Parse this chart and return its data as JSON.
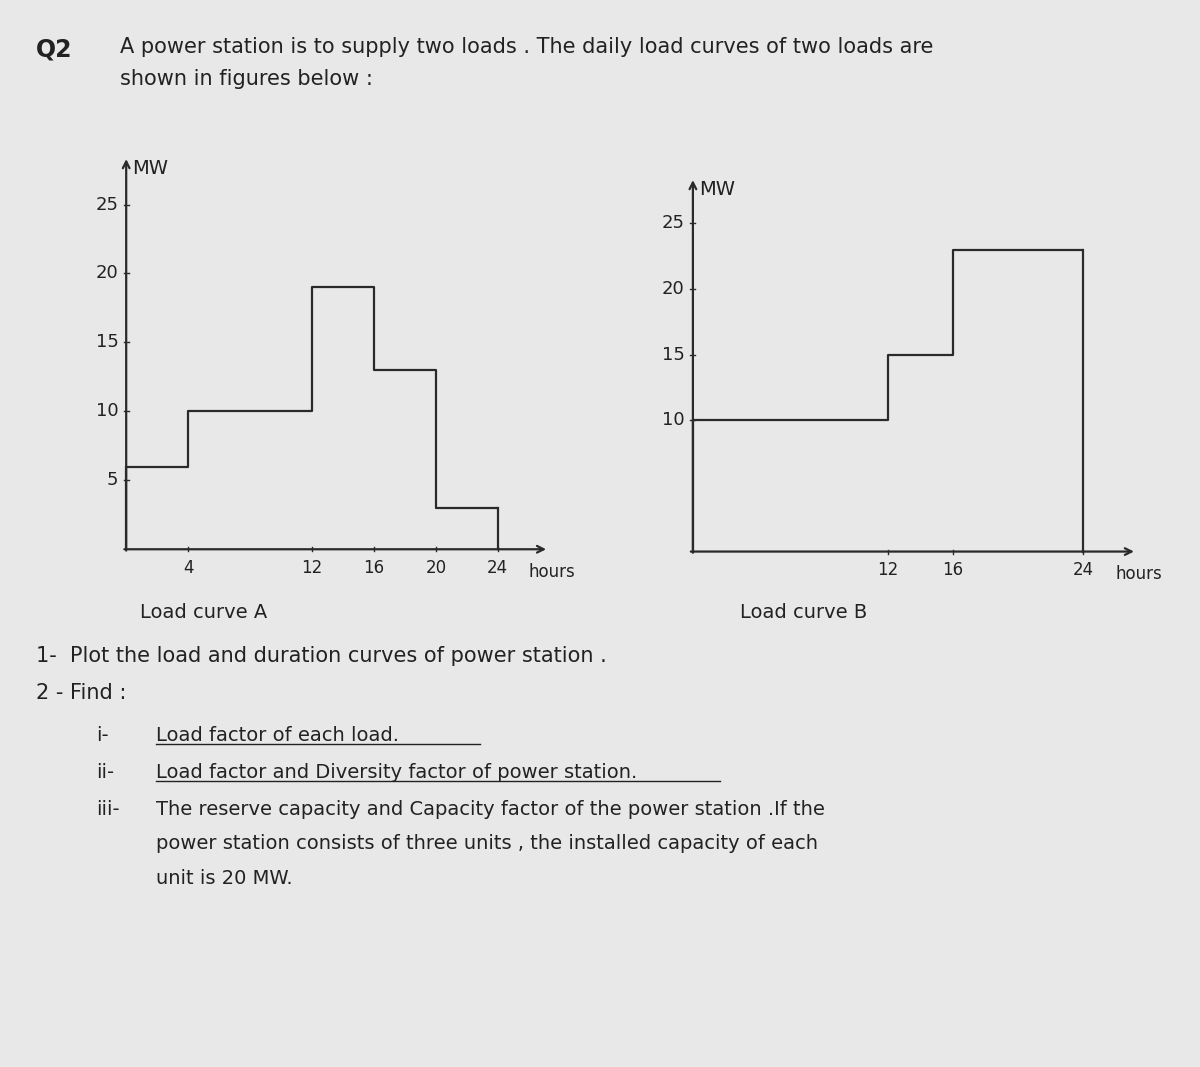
{
  "background_color": "#e8e8e8",
  "title_q2": "Q2",
  "title_line1": "A power station is to supply two loads . The daily load curves of two loads are",
  "title_line2": "shown in figures below :",
  "title_fontsize": 16,
  "chart_A": {
    "label": "Load curve A",
    "ylabel": "MW",
    "xlabel_ticks": [
      4,
      12,
      16,
      20,
      24
    ],
    "xlabel_label": "hours",
    "yticks": [
      5,
      10,
      15,
      20,
      25
    ],
    "ylim": [
      0,
      28
    ],
    "xlim": [
      0,
      27
    ],
    "steps_x": [
      0,
      4,
      4,
      12,
      12,
      16,
      16,
      20,
      20,
      24
    ],
    "steps_y": [
      6,
      6,
      10,
      10,
      19,
      19,
      13,
      13,
      3,
      3
    ]
  },
  "chart_B": {
    "label": "Load curve B",
    "ylabel": "MW",
    "xlabel_ticks": [
      12,
      16,
      24
    ],
    "xlabel_label": "hours",
    "yticks": [
      10,
      15,
      20,
      25
    ],
    "ylim": [
      0,
      28
    ],
    "xlim": [
      0,
      27
    ],
    "steps_x": [
      0,
      12,
      12,
      16,
      16,
      24
    ],
    "steps_y": [
      10,
      10,
      15,
      15,
      23,
      23
    ]
  },
  "q1_text": "1-  Plot the load and duration curves of power station .",
  "q2_text": "2 - Find :",
  "sub_i_num": "i-",
  "sub_i_text": "Load factor of each load.",
  "sub_ii_num": "ii-",
  "sub_ii_text": "Load factor and Diversity factor of power station.",
  "sub_iii_num": "iii-",
  "sub_iii_line1": "The reserve capacity and Capacity factor of the power station .If the",
  "sub_iii_line2": "power station consists of three units , the installed capacity of each",
  "sub_iii_line3": "unit is 20 MW.",
  "line_color": "#2a2a2a",
  "text_color": "#222222"
}
